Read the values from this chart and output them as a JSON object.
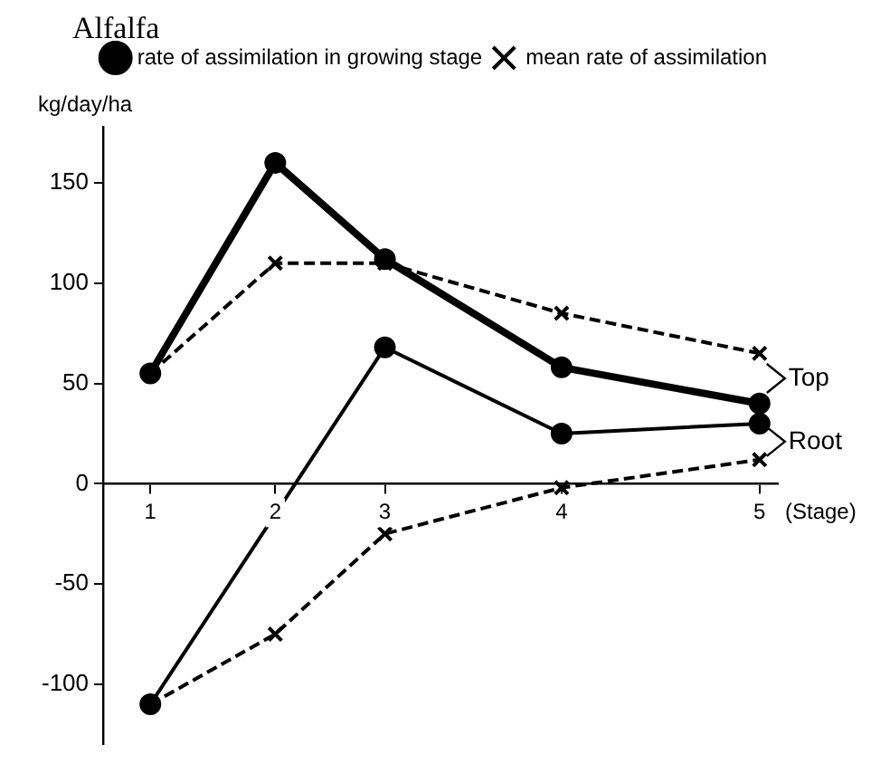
{
  "chart_data": {
    "type": "line",
    "title": "Alfalfa",
    "ylabel": "kg/day/ha",
    "xlabel": "(Stage)",
    "xlim": [
      0.69,
      5.12
    ],
    "xticks": [
      1,
      {
        "value": 1.82,
        "label": "2"
      },
      {
        "value": 2.54,
        "label": "3"
      },
      {
        "value": 3.7,
        "label": "4"
      },
      5
    ],
    "ylim": [
      -130,
      178
    ],
    "yticks": [
      -100,
      -50,
      0,
      50,
      100,
      150
    ],
    "grid": false,
    "legend": "top right",
    "series": [
      {
        "name": "rate of assimilation in growing stage",
        "color": "#000000",
        "marker": "circle",
        "line_style": "solid",
        "x": [
          1,
          1.82,
          2.54,
          3.7,
          5
        ],
        "values": [
          55,
          160,
          112,
          58,
          40
        ]
      },
      {
        "name": "mean rate of assimilation",
        "color": "#000000",
        "marker": "cross",
        "line_style": "dashed",
        "x": [
          1,
          1.82,
          2.54,
          3.7,
          5
        ],
        "values": [
          55,
          110,
          110,
          85,
          65
        ]
      },
      {
        "color": "#000000",
        "marker": "circle",
        "line_style": "solid",
        "x": [
          1,
          2.54,
          3.7,
          5
        ],
        "values": [
          -110,
          68,
          25,
          30
        ]
      },
      {
        "color": "#000000",
        "marker": "cross",
        "line_style": "dashed",
        "x": [
          1,
          1.82,
          2.54,
          3.7,
          5
        ],
        "values": [
          -110,
          -75,
          -25,
          -2,
          12
        ]
      }
    ],
    "annotations": [
      "Top",
      "Root"
    ]
  }
}
